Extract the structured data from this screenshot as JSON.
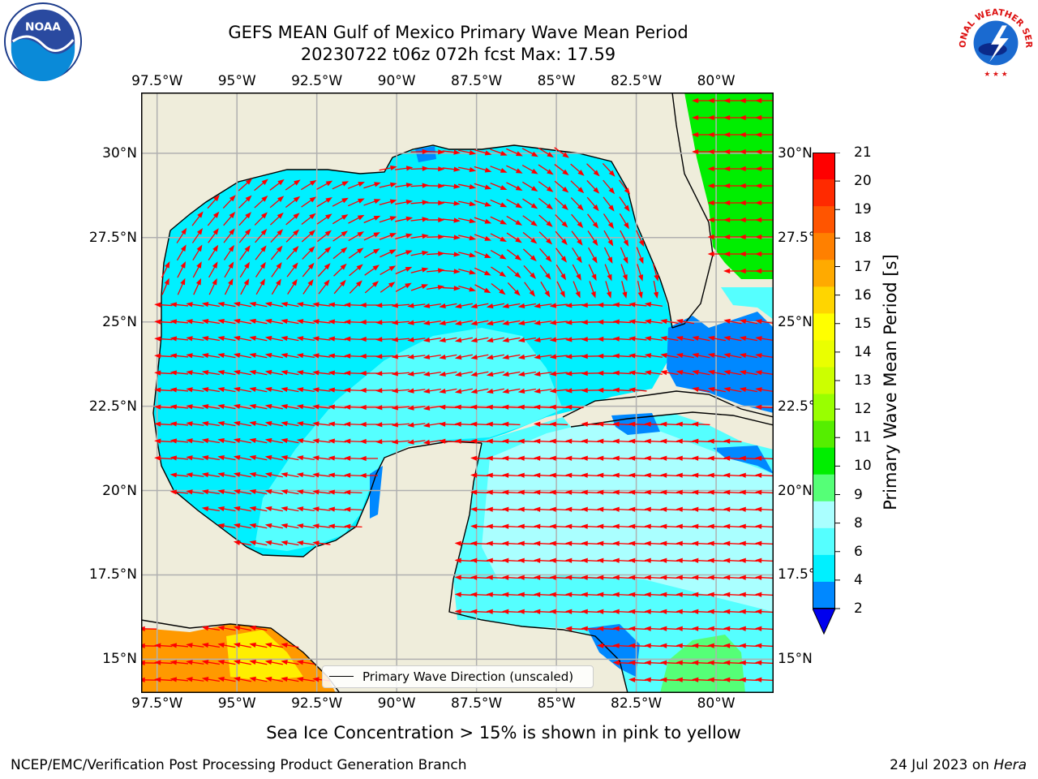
{
  "header": {
    "title_line1": "GEFS MEAN Gulf of Mexico Primary Wave Mean Period",
    "title_line2": "20230722 t06z 072h fcst   Max: 17.59"
  },
  "logos": {
    "left": "noaa-logo",
    "right": "national-weather-service-logo",
    "right_text": "NATIONAL WEATHER SERVICE"
  },
  "axes": {
    "lon_labels": [
      "97.5°W",
      "95°W",
      "92.5°W",
      "90°W",
      "87.5°W",
      "85°W",
      "82.5°W",
      "80°W"
    ],
    "lat_labels": [
      "30°N",
      "27.5°N",
      "25°N",
      "22.5°N",
      "20°N",
      "17.5°N",
      "15°N"
    ],
    "lon_values": [
      -97.5,
      -95,
      -92.5,
      -90,
      -87.5,
      -85,
      -82.5,
      -80
    ],
    "lat_values": [
      30,
      27.5,
      25,
      22.5,
      20,
      17.5,
      15
    ],
    "lon_range": [
      -98.0,
      -78.2
    ],
    "lat_range": [
      14.0,
      31.8
    ]
  },
  "legend": {
    "label": "Primary Wave Direction (unscaled)"
  },
  "colorbar": {
    "label": "Primary Wave Mean Period [s]",
    "ticks": [
      "21",
      "20",
      "19",
      "18",
      "17",
      "16",
      "15",
      "14",
      "13",
      "12",
      "11",
      "10",
      "9",
      "8",
      "6",
      "4",
      "2"
    ],
    "colors": [
      "#ff0000",
      "#ff2a00",
      "#ff5500",
      "#ff8000",
      "#ffaa00",
      "#ffd500",
      "#ffff00",
      "#eaff00",
      "#ccff00",
      "#99ff00",
      "#55ee00",
      "#00ee00",
      "#55ff77",
      "#aaffff",
      "#55ffff",
      "#00f0ff",
      "#0088ff"
    ],
    "extend_color": "#0000ee"
  },
  "map_colors": {
    "land": "#efeddb",
    "period_4_6": "#00f0ff",
    "period_6_8": "#55ffff",
    "period_8_9": "#aaffff",
    "period_2_4": "#0088ff",
    "period_10_11": "#00ee00",
    "period_9_10": "#55ff77",
    "period_16_18": "#ff9900",
    "period_14_16": "#ffee00",
    "arrow_color": "#ff0000",
    "grid_color": "#b0b0b0"
  },
  "notes": {
    "ice": "Sea Ice Concentration > 15% is shown in pink to yellow"
  },
  "footer": {
    "left": "NCEP/EMC/Verification Post Processing Product Generation Branch",
    "right_date": "24 Jul 2023 on",
    "right_host": "Hera"
  }
}
